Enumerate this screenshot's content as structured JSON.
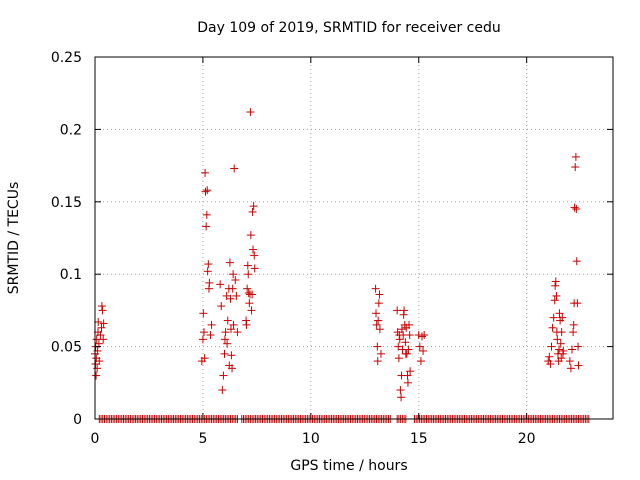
{
  "chart_data": {
    "type": "scatter",
    "title": "Day 109 of 2019, SRMTID for receiver cedu",
    "xlabel": "GPS time / hours",
    "ylabel": "SRMTID / TECUs",
    "xlim": [
      0,
      24
    ],
    "ylim": [
      0,
      0.25
    ],
    "xticks": [
      0,
      5,
      10,
      15,
      20
    ],
    "xtick_labels": [
      "0",
      "5",
      "10",
      "15",
      "20"
    ],
    "yticks": [
      0,
      0.05,
      0.1,
      0.15,
      0.2,
      0.25
    ],
    "ytick_labels": [
      "0",
      "0.05",
      "0.1",
      "0.15",
      "0.2",
      "0.25"
    ],
    "grid": true,
    "marker": "+",
    "color": "#cc0000",
    "series": [
      {
        "name": "SRMTID",
        "points": [
          [
            0.0,
            0.045
          ],
          [
            0.02,
            0.038
          ],
          [
            0.03,
            0.05
          ],
          [
            0.05,
            0.03
          ],
          [
            0.06,
            0.042
          ],
          [
            0.08,
            0.055
          ],
          [
            0.1,
            0.035
          ],
          [
            0.12,
            0.047
          ],
          [
            0.14,
            0.06
          ],
          [
            0.15,
            0.067
          ],
          [
            0.18,
            0.052
          ],
          [
            0.2,
            0.04
          ],
          [
            0.25,
            0.058
          ],
          [
            0.3,
            0.063
          ],
          [
            0.32,
            0.078
          ],
          [
            0.35,
            0.075
          ],
          [
            0.38,
            0.055
          ],
          [
            0.4,
            0.066
          ],
          [
            4.95,
            0.04
          ],
          [
            5.0,
            0.055
          ],
          [
            5.02,
            0.073
          ],
          [
            5.05,
            0.06
          ],
          [
            5.08,
            0.042
          ],
          [
            5.1,
            0.17
          ],
          [
            5.12,
            0.157
          ],
          [
            5.15,
            0.133
          ],
          [
            5.18,
            0.141
          ],
          [
            5.2,
            0.158
          ],
          [
            5.22,
            0.102
          ],
          [
            5.25,
            0.107
          ],
          [
            5.28,
            0.09
          ],
          [
            5.3,
            0.094
          ],
          [
            5.35,
            0.058
          ],
          [
            5.4,
            0.065
          ],
          [
            5.8,
            0.093
          ],
          [
            5.85,
            0.078
          ],
          [
            5.9,
            0.02
          ],
          [
            5.95,
            0.03
          ],
          [
            6.0,
            0.045
          ],
          [
            6.02,
            0.055
          ],
          [
            6.05,
            0.06
          ],
          [
            6.1,
            0.085
          ],
          [
            6.12,
            0.052
          ],
          [
            6.15,
            0.068
          ],
          [
            6.2,
            0.09
          ],
          [
            6.22,
            0.037
          ],
          [
            6.25,
            0.108
          ],
          [
            6.28,
            0.083
          ],
          [
            6.3,
            0.062
          ],
          [
            6.32,
            0.044
          ],
          [
            6.35,
            0.035
          ],
          [
            6.38,
            0.09
          ],
          [
            6.4,
            0.1
          ],
          [
            6.42,
            0.065
          ],
          [
            6.45,
            0.173
          ],
          [
            6.5,
            0.096
          ],
          [
            6.55,
            0.085
          ],
          [
            6.6,
            0.06
          ],
          [
            7.0,
            0.068
          ],
          [
            7.02,
            0.065
          ],
          [
            7.05,
            0.09
          ],
          [
            7.08,
            0.106
          ],
          [
            7.1,
            0.1
          ],
          [
            7.12,
            0.087
          ],
          [
            7.15,
            0.08
          ],
          [
            7.18,
            0.086
          ],
          [
            7.2,
            0.212
          ],
          [
            7.22,
            0.127
          ],
          [
            7.25,
            0.075
          ],
          [
            7.28,
            0.086
          ],
          [
            7.3,
            0.143
          ],
          [
            7.32,
            0.117
          ],
          [
            7.35,
            0.147
          ],
          [
            7.38,
            0.113
          ],
          [
            7.4,
            0.104
          ],
          [
            13.0,
            0.09
          ],
          [
            13.02,
            0.073
          ],
          [
            13.05,
            0.065
          ],
          [
            13.08,
            0.05
          ],
          [
            13.1,
            0.04
          ],
          [
            13.12,
            0.068
          ],
          [
            13.15,
            0.08
          ],
          [
            13.18,
            0.086
          ],
          [
            13.2,
            0.062
          ],
          [
            13.25,
            0.045
          ],
          [
            14.0,
            0.075
          ],
          [
            14.02,
            0.06
          ],
          [
            14.05,
            0.05
          ],
          [
            14.08,
            0.042
          ],
          [
            14.1,
            0.058
          ],
          [
            14.12,
            0.055
          ],
          [
            14.15,
            0.02
          ],
          [
            14.18,
            0.015
          ],
          [
            14.2,
            0.03
          ],
          [
            14.22,
            0.062
          ],
          [
            14.25,
            0.048
          ],
          [
            14.28,
            0.058
          ],
          [
            14.3,
            0.072
          ],
          [
            14.32,
            0.075
          ],
          [
            14.35,
            0.065
          ],
          [
            14.38,
            0.053
          ],
          [
            14.4,
            0.045
          ],
          [
            14.42,
            0.063
          ],
          [
            14.45,
            0.045
          ],
          [
            14.48,
            0.03
          ],
          [
            14.5,
            0.025
          ],
          [
            14.52,
            0.048
          ],
          [
            14.55,
            0.065
          ],
          [
            14.58,
            0.058
          ],
          [
            14.6,
            0.033
          ],
          [
            15.0,
            0.058
          ],
          [
            15.05,
            0.05
          ],
          [
            15.1,
            0.04
          ],
          [
            15.15,
            0.057
          ],
          [
            15.2,
            0.047
          ],
          [
            15.25,
            0.058
          ],
          [
            21.0,
            0.04
          ],
          [
            21.05,
            0.043
          ],
          [
            21.1,
            0.038
          ],
          [
            21.15,
            0.05
          ],
          [
            21.2,
            0.063
          ],
          [
            21.25,
            0.07
          ],
          [
            21.3,
            0.082
          ],
          [
            21.32,
            0.092
          ],
          [
            21.35,
            0.095
          ],
          [
            21.38,
            0.085
          ],
          [
            21.4,
            0.06
          ],
          [
            21.42,
            0.055
          ],
          [
            21.45,
            0.045
          ],
          [
            21.48,
            0.04
          ],
          [
            21.5,
            0.048
          ],
          [
            21.52,
            0.073
          ],
          [
            21.55,
            0.068
          ],
          [
            21.58,
            0.052
          ],
          [
            21.6,
            0.042
          ],
          [
            21.62,
            0.06
          ],
          [
            21.65,
            0.07
          ],
          [
            21.68,
            0.045
          ],
          [
            21.7,
            0.047
          ],
          [
            22.0,
            0.04
          ],
          [
            22.05,
            0.035
          ],
          [
            22.1,
            0.048
          ],
          [
            22.15,
            0.06
          ],
          [
            22.18,
            0.065
          ],
          [
            22.2,
            0.08
          ],
          [
            22.22,
            0.146
          ],
          [
            22.25,
            0.174
          ],
          [
            22.28,
            0.181
          ],
          [
            22.3,
            0.145
          ],
          [
            22.32,
            0.109
          ],
          [
            22.35,
            0.08
          ],
          [
            22.38,
            0.05
          ],
          [
            22.4,
            0.037
          ]
        ],
        "zero_intervals": [
          [
            0.2,
            6.6
          ],
          [
            6.8,
            13.7
          ],
          [
            14.0,
            14.4
          ],
          [
            14.8,
            22.9
          ]
        ]
      }
    ]
  }
}
